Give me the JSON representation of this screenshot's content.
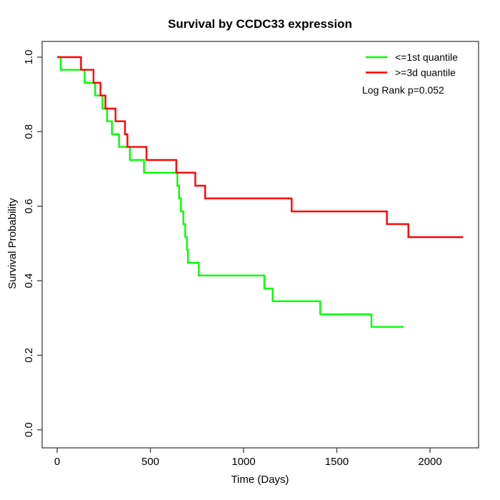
{
  "title": "Survival by CCDC33 expression",
  "x_axis": {
    "label": "Time (Days)",
    "tick_labels": [
      "0",
      "500",
      "1000",
      "1500",
      "2000"
    ],
    "tick_values": [
      0,
      500,
      1000,
      1500,
      2000
    ]
  },
  "y_axis": {
    "label": "Survival Probability",
    "tick_labels": [
      "0.0",
      "0.2",
      "0.4",
      "0.6",
      "0.8",
      "1.0"
    ],
    "tick_values": [
      0.0,
      0.2,
      0.4,
      0.6,
      0.8,
      1.0
    ]
  },
  "legend": {
    "items": [
      {
        "label": "<=1st quantile",
        "color": "#00ff00"
      },
      {
        "label": ">=3d quantile",
        "color": "#ff0000"
      }
    ],
    "note": "Log Rank p=0.052"
  },
  "colors": {
    "background": "#ffffff",
    "frame": "#4d4d4d",
    "text": "#000000"
  },
  "chart_data": {
    "type": "line",
    "subtype": "kaplan-meier-step",
    "title": "Survival by CCDC33 expression",
    "xlabel": "Time (Days)",
    "ylabel": "Survival Probability",
    "xlim": [
      0,
      2260
    ],
    "ylim": [
      0,
      1
    ],
    "x_ticks": [
      0,
      500,
      1000,
      1500,
      2000
    ],
    "y_ticks": [
      0.0,
      0.2,
      0.4,
      0.6,
      0.8,
      1.0
    ],
    "grid": false,
    "legend_position": "top-right",
    "annotation": "Log Rank p=0.052",
    "series": [
      {
        "name": "<=1st quantile",
        "color": "#00ff00",
        "end_time": 1858,
        "points": [
          [
            0,
            1.0
          ],
          [
            19,
            0.966
          ],
          [
            147,
            0.931
          ],
          [
            204,
            0.897
          ],
          [
            243,
            0.862
          ],
          [
            268,
            0.828
          ],
          [
            294,
            0.793
          ],
          [
            332,
            0.759
          ],
          [
            390,
            0.724
          ],
          [
            466,
            0.69
          ],
          [
            645,
            0.655
          ],
          [
            654,
            0.621
          ],
          [
            664,
            0.586
          ],
          [
            677,
            0.552
          ],
          [
            687,
            0.517
          ],
          [
            696,
            0.483
          ],
          [
            702,
            0.448
          ],
          [
            760,
            0.414
          ],
          [
            1111,
            0.379
          ],
          [
            1156,
            0.345
          ],
          [
            1411,
            0.31
          ],
          [
            1686,
            0.276
          ]
        ]
      },
      {
        "name": ">=3d quantile",
        "color": "#ff0000",
        "end_time": 2178,
        "points": [
          [
            0,
            1.0
          ],
          [
            128,
            0.966
          ],
          [
            195,
            0.931
          ],
          [
            232,
            0.897
          ],
          [
            259,
            0.862
          ],
          [
            313,
            0.828
          ],
          [
            364,
            0.793
          ],
          [
            377,
            0.759
          ],
          [
            479,
            0.724
          ],
          [
            639,
            0.69
          ],
          [
            741,
            0.655
          ],
          [
            794,
            0.621
          ],
          [
            1258,
            0.586
          ],
          [
            1769,
            0.552
          ],
          [
            1884,
            0.517
          ]
        ]
      }
    ]
  }
}
